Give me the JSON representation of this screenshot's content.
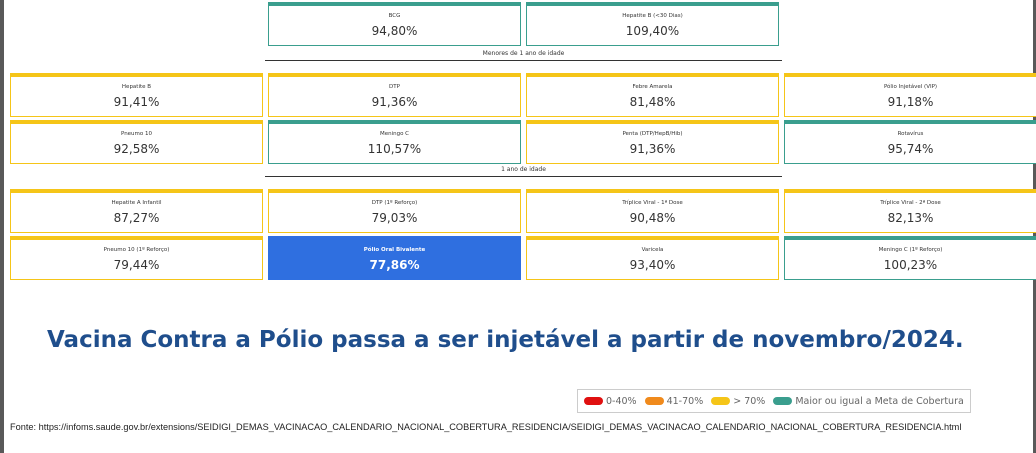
{
  "top_cards": [
    {
      "label": "BCG",
      "value": "94,80%",
      "color": "#3a9e8e"
    },
    {
      "label": "Hepatite B (<30 Dias)",
      "value": "109,40%",
      "color": "#3a9e8e"
    }
  ],
  "sections": [
    {
      "title": "Menores de 1 ano de idade",
      "rows": [
        [
          {
            "label": "Hepatite B",
            "value": "91,41%",
            "color": "#f5c518"
          },
          {
            "label": "DTP",
            "value": "91,36%",
            "color": "#f5c518"
          },
          {
            "label": "Febre Amarela",
            "value": "81,48%",
            "color": "#f5c518"
          },
          {
            "label": "Pólio Injetável (VIP)",
            "value": "91,18%",
            "color": "#f5c518"
          }
        ],
        [
          {
            "label": "Pneumo 10",
            "value": "92,58%",
            "color": "#f5c518"
          },
          {
            "label": "Meningo C",
            "value": "110,57%",
            "color": "#3a9e8e"
          },
          {
            "label": "Penta (DTP/HepB/Hib)",
            "value": "91,36%",
            "color": "#f5c518"
          },
          {
            "label": "Rotavírus",
            "value": "95,74%",
            "color": "#3a9e8e"
          }
        ]
      ]
    },
    {
      "title": "1 ano de idade",
      "rows": [
        [
          {
            "label": "Hepatite A Infantil",
            "value": "87,27%",
            "color": "#f5c518"
          },
          {
            "label": "DTP (1º Reforço)",
            "value": "79,03%",
            "color": "#f5c518"
          },
          {
            "label": "Tríplice Viral - 1ª Dose",
            "value": "90,48%",
            "color": "#f5c518"
          },
          {
            "label": "Tríplice Viral - 2ª Dose",
            "value": "82,13%",
            "color": "#f5c518"
          }
        ],
        [
          {
            "label": "Pneumo 10 (1º Reforço)",
            "value": "79,44%",
            "color": "#f5c518"
          },
          {
            "label": "Pólio Oral Bivalente",
            "value": "77,86%",
            "color": "#2f6fe0",
            "highlight": true
          },
          {
            "label": "Varicela",
            "value": "93,40%",
            "color": "#f5c518"
          },
          {
            "label": "Meningo C (1º Reforço)",
            "value": "100,23%",
            "color": "#3a9e8e"
          }
        ]
      ]
    }
  ],
  "headline": "Vacina Contra a Pólio passa a ser injetável a partir de novembro/2024.",
  "legend": [
    {
      "label": "0-40%",
      "color": "#e01010"
    },
    {
      "label": "41-70%",
      "color": "#f08a1c"
    },
    {
      "label": "> 70%",
      "color": "#f5c518"
    },
    {
      "label": "Maior ou igual a Meta de Cobertura",
      "color": "#3a9e8e"
    }
  ],
  "source": "Fonte: https://infoms.saude.gov.br/extensions/SEIDIGI_DEMAS_VACINACAO_CALENDARIO_NACIONAL_COBERTURA_RESIDENCIA/SEIDIGI_DEMAS_VACINACAO_CALENDARIO_NACIONAL_COBERTURA_RESIDENCIA.html"
}
